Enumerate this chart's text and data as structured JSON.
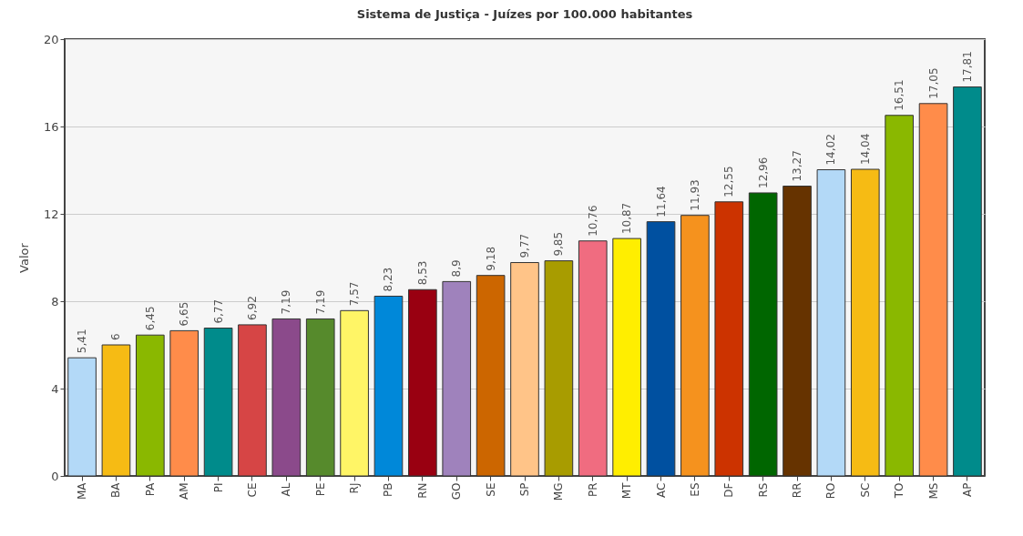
{
  "chart_data": {
    "type": "bar",
    "title": "Sistema de Justiça - Juízes por 100.000 habitantes",
    "ylabel": "Valor",
    "categories": [
      "MA",
      "BA",
      "PA",
      "AM",
      "PI",
      "CE",
      "AL",
      "PE",
      "RJ",
      "PB",
      "RN",
      "GO",
      "SE",
      "SP",
      "MG",
      "PR",
      "MT",
      "AC",
      "ES",
      "DF",
      "RS",
      "RR",
      "RO",
      "SC",
      "TO",
      "MS",
      "AP"
    ],
    "values": [
      5.41,
      6,
      6.45,
      6.65,
      6.77,
      6.92,
      7.19,
      7.19,
      7.57,
      8.23,
      8.53,
      8.9,
      9.18,
      9.77,
      9.85,
      10.76,
      10.87,
      11.64,
      11.93,
      12.55,
      12.96,
      13.27,
      14.02,
      14.04,
      16.51,
      17.05,
      17.81
    ],
    "value_labels": [
      "5,41",
      "6",
      "6,45",
      "6,65",
      "6,77",
      "6,92",
      "7,19",
      "7,19",
      "7,57",
      "8,23",
      "8,53",
      "8,9",
      "9,18",
      "9,77",
      "9,85",
      "10,76",
      "10,87",
      "11,64",
      "11,93",
      "12,55",
      "12,96",
      "13,27",
      "14,02",
      "14,04",
      "16,51",
      "17,05",
      "17,81"
    ],
    "colors": [
      "#b3d9f7",
      "#f6bb14",
      "#8ab800",
      "#ff8c4a",
      "#008b8b",
      "#d64545",
      "#8b4a8b",
      "#568a2c",
      "#fff566",
      "#0088d9",
      "#990011",
      "#9f82bc",
      "#cc6600",
      "#ffc488",
      "#a89c00",
      "#f06c80",
      "#ffee00",
      "#0050a0",
      "#f5921e",
      "#cc3300",
      "#006600",
      "#663300",
      "#b3d9f7",
      "#f6bb14",
      "#8ab800",
      "#ff8c4a",
      "#008b8b"
    ],
    "ylim": [
      0,
      20
    ],
    "yticks": [
      0,
      4,
      8,
      12,
      16,
      20
    ],
    "grid": "y"
  }
}
